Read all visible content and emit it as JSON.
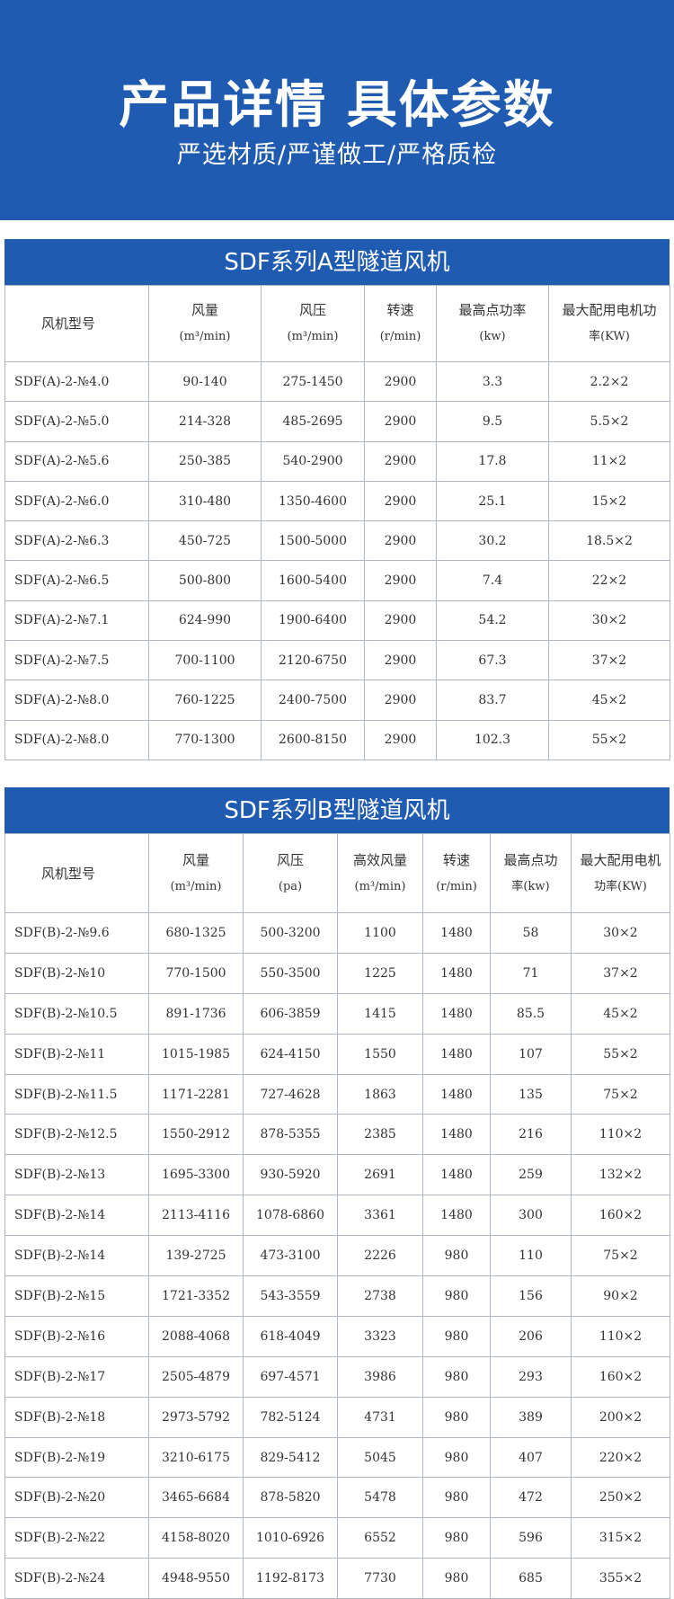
{
  "hero": {
    "title": "产品详情 具体参数",
    "subtitle": "严选材质/严谨做工/严格质检",
    "background_color": "#1f5bb0"
  },
  "table_a": {
    "title": "SDF系列A型隧道风机",
    "headers": [
      {
        "label": "风机型号",
        "unit": ""
      },
      {
        "label": "风量",
        "unit": "(m³/min)"
      },
      {
        "label": "风压",
        "unit": "(m³/min)"
      },
      {
        "label": "转速",
        "unit": "(r/min)"
      },
      {
        "label": "最高点功率",
        "unit": "(kw)"
      },
      {
        "label": "最大配用电机功",
        "unit": "率(KW)"
      }
    ],
    "rows": [
      [
        "SDF(A)-2-№4.0",
        "90-140",
        "275-1450",
        "2900",
        "3.3",
        "2.2×2"
      ],
      [
        "SDF(A)-2-№5.0",
        "214-328",
        "485-2695",
        "2900",
        "9.5",
        "5.5×2"
      ],
      [
        "SDF(A)-2-№5.6",
        "250-385",
        "540-2900",
        "2900",
        "17.8",
        "11×2"
      ],
      [
        "SDF(A)-2-№6.0",
        "310-480",
        "1350-4600",
        "2900",
        "25.1",
        "15×2"
      ],
      [
        "SDF(A)-2-№6.3",
        "450-725",
        "1500-5000",
        "2900",
        "30.2",
        "18.5×2"
      ],
      [
        "SDF(A)-2-№6.5",
        "500-800",
        "1600-5400",
        "2900",
        "7.4",
        "22×2"
      ],
      [
        "SDF(A)-2-№7.1",
        "624-990",
        "1900-6400",
        "2900",
        "54.2",
        "30×2"
      ],
      [
        "SDF(A)-2-№7.5",
        "700-1100",
        "2120-6750",
        "2900",
        "67.3",
        "37×2"
      ],
      [
        "SDF(A)-2-№8.0",
        "760-1225",
        "2400-7500",
        "2900",
        "83.7",
        "45×2"
      ],
      [
        "SDF(A)-2-№8.0",
        "770-1300",
        "2600-8150",
        "2900",
        "102.3",
        "55×2"
      ]
    ]
  },
  "table_b": {
    "title": "SDF系列B型隧道风机",
    "headers": [
      {
        "label": "风机型号",
        "unit": ""
      },
      {
        "label": "风量",
        "unit": "(m³/min)"
      },
      {
        "label": "风压",
        "unit": "(pa)"
      },
      {
        "label": "高效风量",
        "unit": "(m³/min)"
      },
      {
        "label": "转速",
        "unit": "(r/min)"
      },
      {
        "label": "最高点功",
        "unit": "率(kw)"
      },
      {
        "label": "最大配用电机",
        "unit": "功率(KW)"
      }
    ],
    "rows": [
      [
        "SDF(B)-2-№9.6",
        "680-1325",
        "500-3200",
        "1100",
        "1480",
        "58",
        "30×2"
      ],
      [
        "SDF(B)-2-№10",
        "770-1500",
        "550-3500",
        "1225",
        "1480",
        "71",
        "37×2"
      ],
      [
        "SDF(B)-2-№10.5",
        "891-1736",
        "606-3859",
        "1415",
        "1480",
        "85.5",
        "45×2"
      ],
      [
        "SDF(B)-2-№11",
        "1015-1985",
        "624-4150",
        "1550",
        "1480",
        "107",
        "55×2"
      ],
      [
        "SDF(B)-2-№11.5",
        "1171-2281",
        "727-4628",
        "1863",
        "1480",
        "135",
        "75×2"
      ],
      [
        "SDF(B)-2-№12.5",
        "1550-2912",
        "878-5355",
        "2385",
        "1480",
        "216",
        "110×2"
      ],
      [
        "SDF(B)-2-№13",
        "1695-3300",
        "930-5920",
        "2691",
        "1480",
        "259",
        "132×2"
      ],
      [
        "SDF(B)-2-№14",
        "2113-4116",
        "1078-6860",
        "3361",
        "1480",
        "300",
        "160×2"
      ],
      [
        "SDF(B)-2-№14",
        "139-2725",
        "473-3100",
        "2226",
        "980",
        "110",
        "75×2"
      ],
      [
        "SDF(B)-2-№15",
        "1721-3352",
        "543-3559",
        "2738",
        "980",
        "156",
        "90×2"
      ],
      [
        "SDF(B)-2-№16",
        "2088-4068",
        "618-4049",
        "3323",
        "980",
        "206",
        "110×2"
      ],
      [
        "SDF(B)-2-№17",
        "2505-4879",
        "697-4571",
        "3986",
        "980",
        "293",
        "160×2"
      ],
      [
        "SDF(B)-2-№18",
        "2973-5792",
        "782-5124",
        "4731",
        "980",
        "389",
        "200×2"
      ],
      [
        "SDF(B)-2-№19",
        "3210-6175",
        "829-5412",
        "5045",
        "980",
        "407",
        "220×2"
      ],
      [
        "SDF(B)-2-№20",
        "3465-6684",
        "878-5820",
        "5478",
        "980",
        "472",
        "250×2"
      ],
      [
        "SDF(B)-2-№22",
        "4158-8020",
        "1010-6926",
        "6552",
        "980",
        "596",
        "315×2"
      ],
      [
        "SDF(B)-2-№24",
        "4948-9550",
        "1192-8173",
        "7730",
        "980",
        "685",
        "355×2"
      ]
    ]
  }
}
